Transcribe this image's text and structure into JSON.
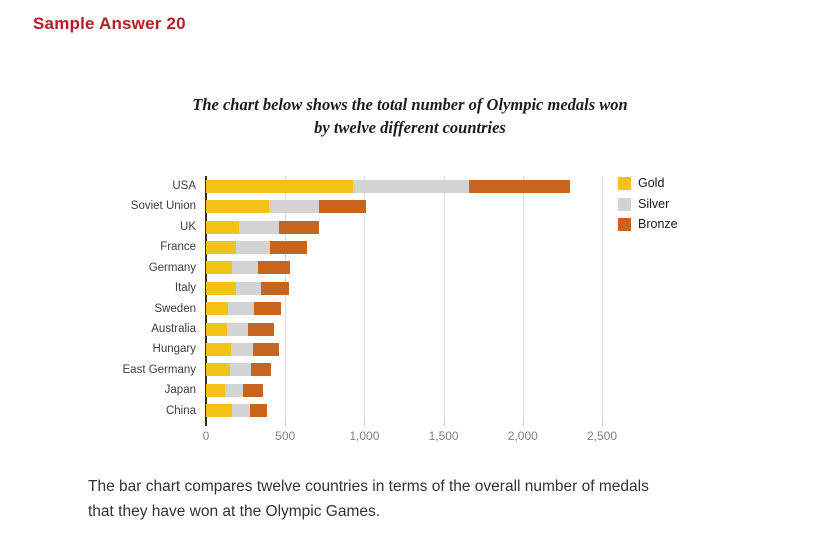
{
  "header": {
    "title": "Sample Answer 20",
    "title_color": "#b32026"
  },
  "chart_data": {
    "type": "bar",
    "orientation": "horizontal",
    "stacked": true,
    "title": "The chart below shows the total number of Olympic medals won by twelve different countries",
    "title_lines": [
      "The chart below shows the total number of Olympic medals won",
      "by twelve different countries"
    ],
    "categories": [
      "USA",
      "Soviet Union",
      "UK",
      "France",
      "Germany",
      "Italy",
      "Sweden",
      "Australia",
      "Hungary",
      "East Germany",
      "Japan",
      "China"
    ],
    "series": [
      {
        "name": "Gold",
        "color": "#f2c216",
        "values": [
          929,
          395,
          207,
          191,
          163,
          190,
          142,
          131,
          159,
          153,
          123,
          163
        ]
      },
      {
        "name": "Silver",
        "color": "#d3d3d3",
        "values": [
          729,
          319,
          255,
          212,
          163,
          158,
          160,
          137,
          140,
          129,
          112,
          117
        ]
      },
      {
        "name": "Bronze",
        "color": "#c7641e",
        "values": [
          637,
          296,
          253,
          233,
          203,
          174,
          173,
          164,
          159,
          127,
          126,
          105
        ]
      }
    ],
    "xlabel": "",
    "ylabel": "",
    "xlim": [
      0,
      2500
    ],
    "xticks": [
      0,
      500,
      1000,
      1500,
      2000,
      2500
    ],
    "xtick_labels": [
      "0",
      "500",
      "1,000",
      "1,500",
      "2,000",
      "2,500"
    ],
    "grid": true,
    "legend_position": "right"
  },
  "caption": {
    "lines": [
      "The bar chart compares twelve countries in terms of the overall number of medals",
      "that they have won at the Olympic Games."
    ]
  }
}
